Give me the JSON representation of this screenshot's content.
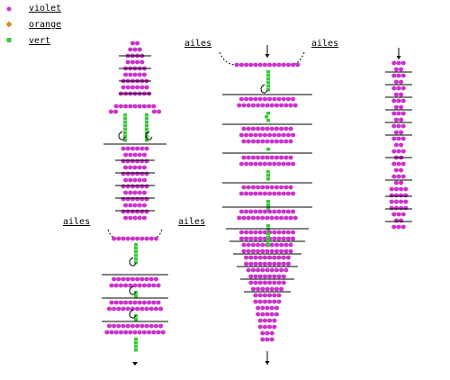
{
  "legend": [
    {
      "label": "violet",
      "color": "#cc33cc"
    },
    {
      "label": "orange",
      "color": "#e08a2e"
    },
    {
      "label": "vert",
      "color": "#33cc33"
    }
  ],
  "annotations": [
    "ailes",
    "ailes",
    "ailes",
    "ailes"
  ]
}
